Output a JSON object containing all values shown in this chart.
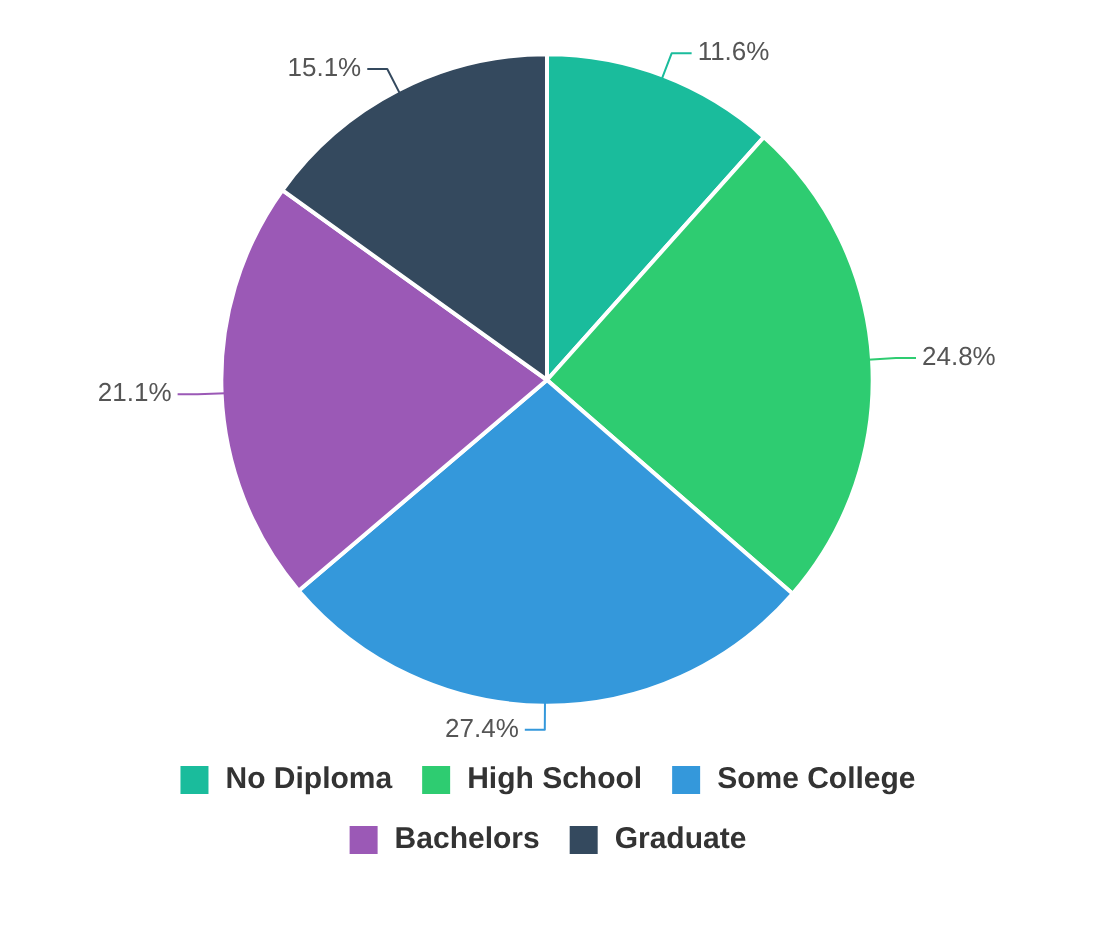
{
  "chart_data": {
    "type": "pie",
    "categories": [
      "No Diploma",
      "High School",
      "Some College",
      "Bachelors",
      "Graduate"
    ],
    "values": [
      11.6,
      24.8,
      27.4,
      21.1,
      15.1
    ],
    "colors": [
      "#1abc9c",
      "#2ecc71",
      "#3498db",
      "#9b59b6",
      "#34495e"
    ],
    "value_labels": [
      "11.6%",
      "24.8%",
      "27.4%",
      "21.1%",
      "15.1%"
    ],
    "legend": "bottom"
  }
}
